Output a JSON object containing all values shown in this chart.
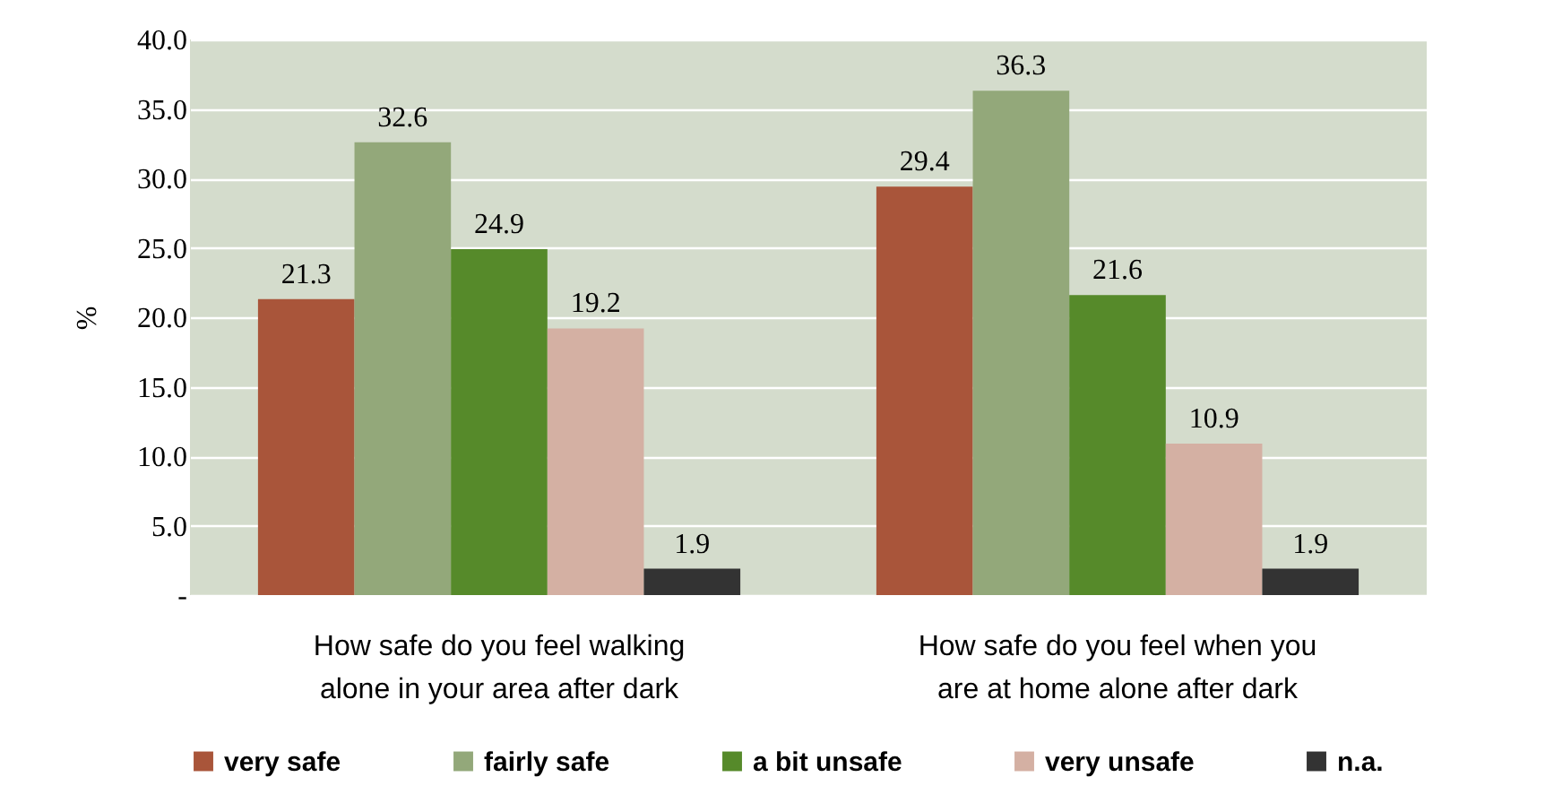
{
  "chart_data": {
    "type": "bar",
    "ylabel": "%",
    "categories": [
      "How safe do you feel walking alone in your area after dark",
      "How safe do you feel when you are at home alone after dark"
    ],
    "series": [
      {
        "name": "very safe",
        "color": "#a9553a",
        "values": [
          21.3,
          29.4
        ]
      },
      {
        "name": "fairly safe",
        "color": "#93a87a",
        "values": [
          32.6,
          36.3
        ]
      },
      {
        "name": "a bit unsafe",
        "color": "#568a2a",
        "values": [
          24.9,
          21.6
        ]
      },
      {
        "name": "very unsafe",
        "color": "#d4b0a3",
        "values": [
          19.2,
          10.9
        ]
      },
      {
        "name": "n.a.",
        "color": "#333333",
        "values": [
          1.9,
          1.9
        ]
      }
    ],
    "ylim": [
      0,
      40
    ],
    "yticks": [
      {
        "value": 0,
        "label": "-"
      },
      {
        "value": 5,
        "label": "5.0"
      },
      {
        "value": 10,
        "label": "10.0"
      },
      {
        "value": 15,
        "label": "15.0"
      },
      {
        "value": 20,
        "label": "20.0"
      },
      {
        "value": 25,
        "label": "25.0"
      },
      {
        "value": 30,
        "label": "30.0"
      },
      {
        "value": 35,
        "label": "35.0"
      },
      {
        "value": 40,
        "label": "40.0"
      }
    ],
    "grid": "y",
    "legend": "bottom",
    "data_labels": true
  }
}
